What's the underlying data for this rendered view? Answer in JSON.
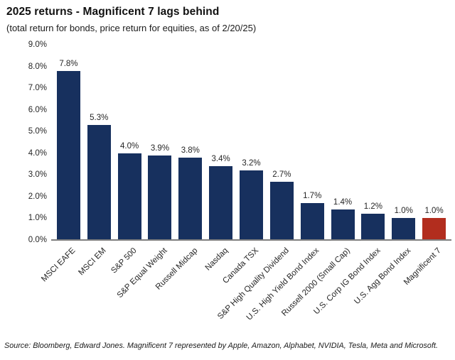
{
  "header": {
    "title": "2025 returns - Magnificent 7 lags behind",
    "subtitle": "(total return for bonds, price return for equities, as of 2/20/25)"
  },
  "chart_data": {
    "type": "bar",
    "title": "2025 returns - Magnificent 7 lags behind",
    "subtitle": "(total return for bonds, price return for equities, as of 2/20/25)",
    "categories": [
      "MSCI EAFE",
      "MSCI EM",
      "S&P 500",
      "S&P Equal Weight",
      "Russell Midcap",
      "Nasdaq",
      "Canada TSX",
      "S&P High Quality Dividend",
      "U.S. High Yield Bond Index",
      "Russell 2000 (Small Cap)",
      "U.S. Corp IG Bond Index",
      "U.S. Agg Bond Index",
      "Magnificent 7"
    ],
    "values": [
      7.8,
      5.3,
      4.0,
      3.9,
      3.8,
      3.4,
      3.2,
      2.7,
      1.7,
      1.4,
      1.2,
      1.0,
      1.0
    ],
    "value_labels": [
      "7.8%",
      "5.3%",
      "4.0%",
      "3.9%",
      "3.8%",
      "3.4%",
      "3.2%",
      "2.7%",
      "1.7%",
      "1.4%",
      "1.2%",
      "1.0%",
      "1.0%"
    ],
    "ytick_labels": [
      "0.0%",
      "1.0%",
      "2.0%",
      "3.0%",
      "4.0%",
      "5.0%",
      "6.0%",
      "7.0%",
      "8.0%",
      "9.0%"
    ],
    "ylim": [
      0,
      9
    ],
    "xlabel": "",
    "ylabel": "",
    "grid": false,
    "legend": "none",
    "colors": {
      "bar_default": "#17305e",
      "bar_highlight": "#b22d1e",
      "highlight_index": 12,
      "axis_line": "#7f7f7f",
      "text": "#262626"
    }
  },
  "source": {
    "text": "Source: Bloomberg, Edward Jones. Magnificent 7 represented by Apple, Amazon, Alphabet, NVIDIA, Tesla, Meta and Microsoft."
  }
}
